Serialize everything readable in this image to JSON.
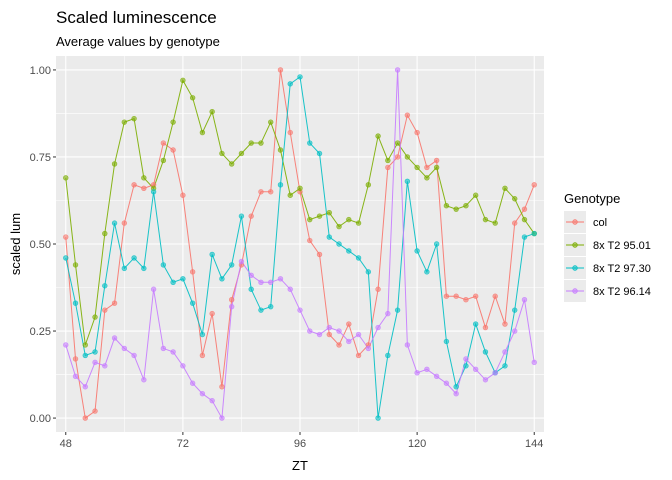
{
  "chart_data": {
    "type": "line",
    "title": "Scaled luminescence",
    "subtitle": "Average values by genotype",
    "xlabel": "ZT",
    "ylabel": "scaled lum",
    "xlim": [
      46,
      146
    ],
    "ylim": [
      -0.04,
      1.04
    ],
    "xticks": [
      48,
      72,
      96,
      120,
      144
    ],
    "yticks": [
      0.0,
      0.25,
      0.5,
      0.75,
      1.0
    ],
    "ytick_labels": [
      "0.00",
      "0.25",
      "0.50",
      "0.75",
      "1.00"
    ],
    "grid": true,
    "legend": {
      "title": "Genotype",
      "position": "right"
    },
    "series": [
      {
        "name": "col",
        "color": "#F8766D",
        "x": [
          48,
          50,
          52,
          54,
          56,
          58,
          60,
          62,
          64,
          66,
          68,
          70,
          72,
          74,
          76,
          78,
          80,
          82,
          84,
          86,
          88,
          90,
          92,
          94,
          96,
          98,
          100,
          102,
          104,
          106,
          108,
          110,
          112,
          114,
          116,
          118,
          120,
          122,
          124,
          126,
          128,
          130,
          132,
          134,
          136,
          138,
          140,
          142,
          144
        ],
        "values": [
          0.52,
          0.17,
          0.0,
          0.02,
          0.31,
          0.33,
          0.56,
          0.67,
          0.66,
          0.67,
          0.79,
          0.77,
          0.64,
          0.42,
          0.18,
          0.3,
          0.09,
          0.34,
          0.44,
          0.58,
          0.65,
          0.65,
          1.0,
          0.82,
          0.65,
          0.51,
          0.47,
          0.24,
          0.21,
          0.27,
          0.18,
          0.21,
          0.37,
          0.72,
          0.75,
          0.87,
          0.82,
          0.72,
          0.74,
          0.35,
          0.35,
          0.34,
          0.35,
          0.26,
          0.35,
          0.27,
          0.56,
          0.6,
          0.67
        ]
      },
      {
        "name": "8x T2 95.01",
        "color": "#7CAE00",
        "x": [
          48,
          50,
          52,
          54,
          56,
          58,
          60,
          62,
          64,
          66,
          68,
          70,
          72,
          74,
          76,
          78,
          80,
          82,
          84,
          86,
          88,
          90,
          92,
          94,
          96,
          98,
          100,
          102,
          104,
          106,
          108,
          110,
          112,
          114,
          116,
          118,
          120,
          122,
          124,
          126,
          128,
          130,
          132,
          134,
          136,
          138,
          140,
          142,
          144
        ],
        "values": [
          0.69,
          0.44,
          0.21,
          0.29,
          0.53,
          0.73,
          0.85,
          0.86,
          0.69,
          0.66,
          0.74,
          0.85,
          0.97,
          0.92,
          0.82,
          0.88,
          0.76,
          0.73,
          0.76,
          0.79,
          0.79,
          0.85,
          0.77,
          0.64,
          0.66,
          0.57,
          0.58,
          0.59,
          0.55,
          0.57,
          0.56,
          0.67,
          0.81,
          0.74,
          0.79,
          0.75,
          0.72,
          0.69,
          0.72,
          0.61,
          0.6,
          0.61,
          0.64,
          0.57,
          0.56,
          0.66,
          0.63,
          0.57,
          0.53
        ]
      },
      {
        "name": "8x T2 97.30",
        "color": "#00BFC4",
        "x": [
          48,
          50,
          52,
          54,
          56,
          58,
          60,
          62,
          64,
          66,
          68,
          70,
          72,
          74,
          76,
          78,
          80,
          82,
          84,
          86,
          88,
          90,
          92,
          94,
          96,
          98,
          100,
          102,
          104,
          106,
          108,
          110,
          112,
          114,
          116,
          118,
          120,
          122,
          124,
          126,
          128,
          130,
          132,
          134,
          136,
          138,
          140,
          142,
          144
        ],
        "values": [
          0.46,
          0.33,
          0.18,
          0.19,
          0.38,
          0.56,
          0.43,
          0.46,
          0.43,
          0.65,
          0.44,
          0.39,
          0.4,
          0.33,
          0.24,
          0.47,
          0.4,
          0.44,
          0.58,
          0.37,
          0.31,
          0.32,
          0.67,
          0.96,
          0.98,
          0.79,
          0.76,
          0.52,
          0.5,
          0.48,
          0.46,
          0.42,
          0.0,
          0.18,
          0.31,
          0.68,
          0.48,
          0.42,
          0.5,
          0.22,
          0.09,
          0.15,
          0.27,
          0.19,
          0.13,
          0.15,
          0.31,
          0.52,
          0.53
        ]
      },
      {
        "name": "8x T2 96.14",
        "color": "#C77CFF",
        "x": [
          48,
          50,
          52,
          54,
          56,
          58,
          60,
          62,
          64,
          66,
          68,
          70,
          72,
          74,
          76,
          78,
          80,
          82,
          84,
          86,
          88,
          90,
          92,
          94,
          96,
          98,
          100,
          102,
          104,
          106,
          108,
          110,
          112,
          114,
          116,
          118,
          120,
          122,
          124,
          126,
          128,
          130,
          132,
          134,
          136,
          138,
          140,
          142,
          144
        ],
        "values": [
          0.21,
          0.12,
          0.09,
          0.16,
          0.15,
          0.23,
          0.2,
          0.18,
          0.11,
          0.37,
          0.2,
          0.19,
          0.15,
          0.1,
          0.07,
          0.05,
          0.0,
          0.32,
          0.45,
          0.41,
          0.39,
          0.39,
          0.4,
          0.37,
          0.31,
          0.25,
          0.24,
          0.26,
          0.25,
          0.22,
          0.24,
          0.2,
          0.26,
          0.3,
          1.0,
          0.21,
          0.13,
          0.14,
          0.12,
          0.1,
          0.07,
          0.17,
          0.14,
          0.11,
          0.13,
          0.19,
          0.25,
          0.34,
          0.16
        ]
      }
    ]
  }
}
